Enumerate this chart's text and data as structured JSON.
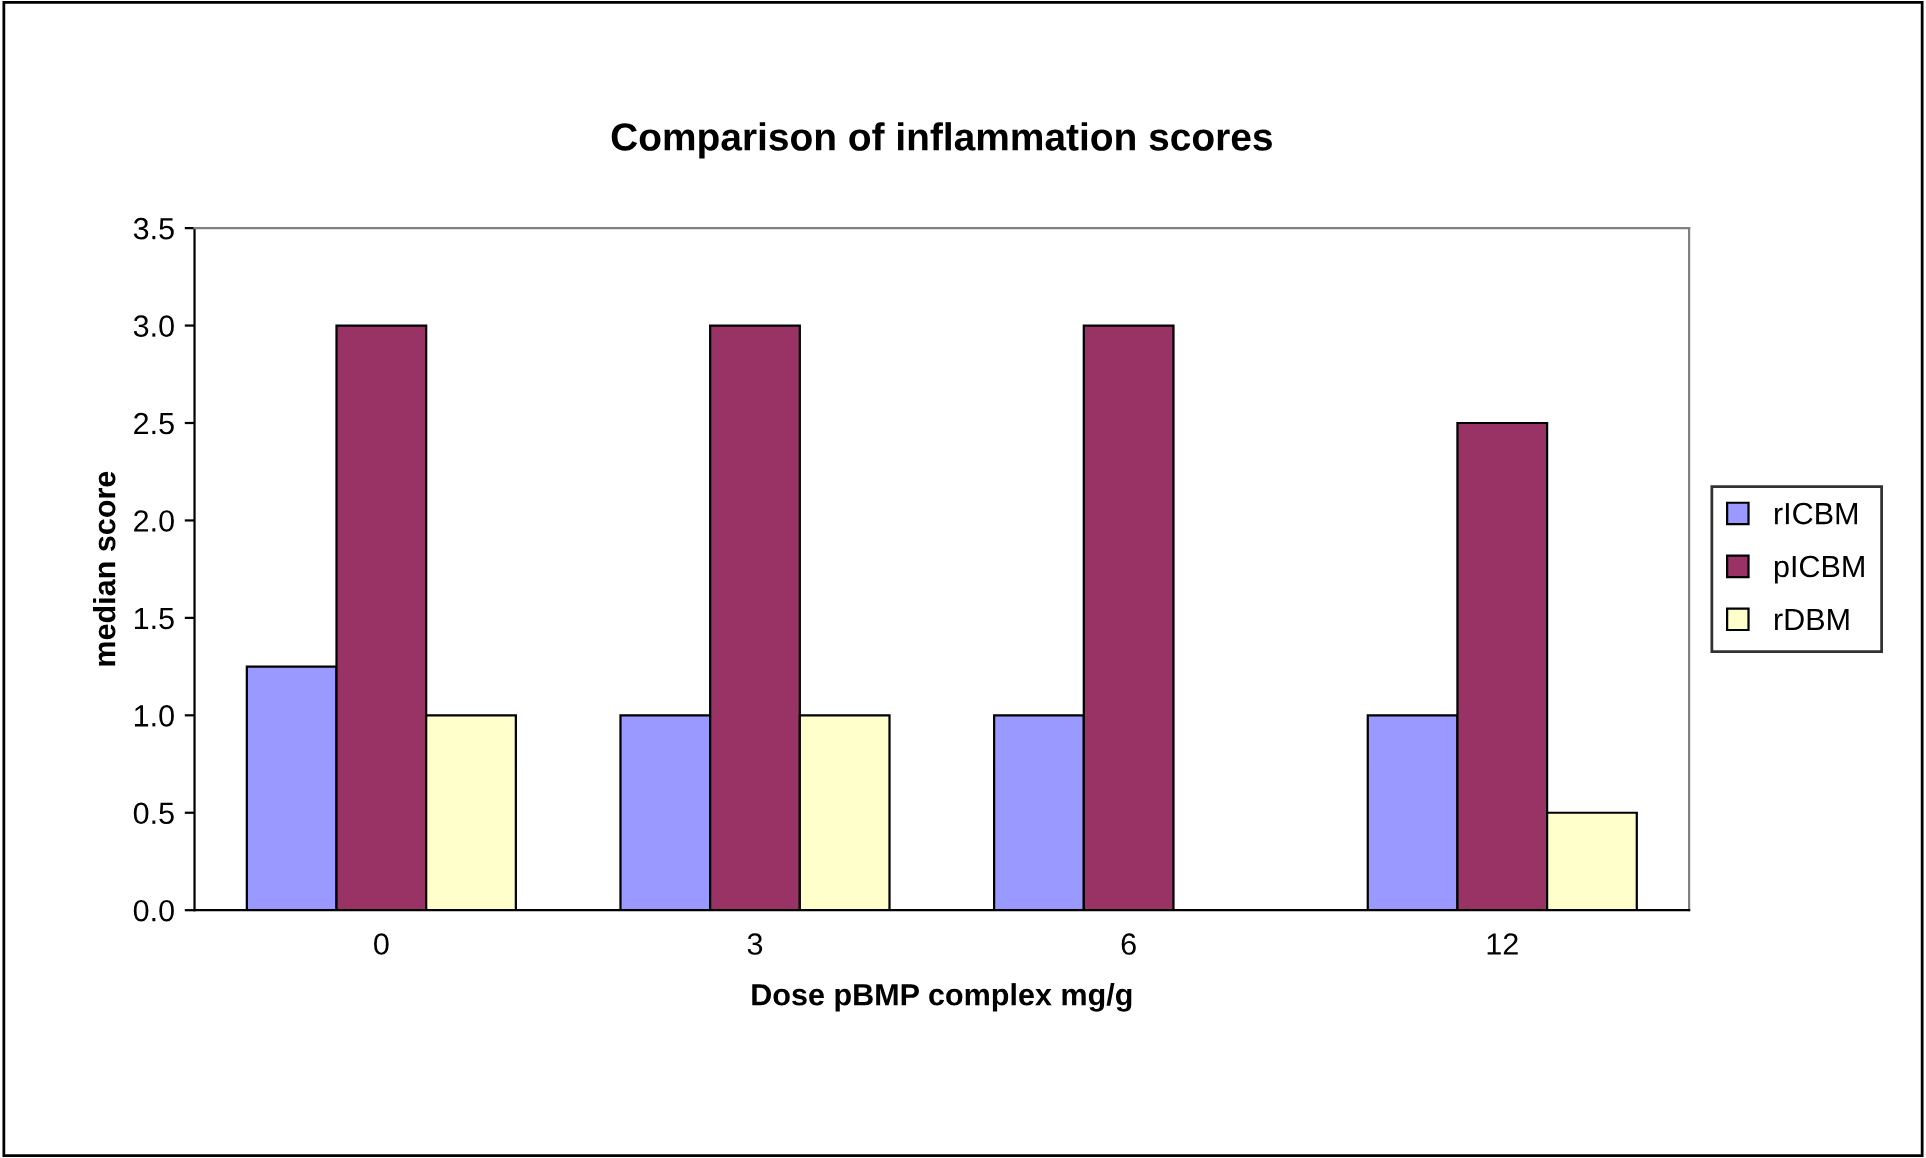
{
  "chart_data": {
    "type": "bar",
    "title": "Comparison of inflammation scores",
    "xlabel": "Dose pBMP complex mg/g",
    "ylabel": "median score",
    "categories": [
      "0",
      "3",
      "6",
      "12"
    ],
    "series": [
      {
        "name": "rICBM",
        "color": "#9999ff",
        "values": [
          1.25,
          1.0,
          1.0,
          1.0
        ]
      },
      {
        "name": "pICBM",
        "color": "#993366",
        "values": [
          3.0,
          3.0,
          3.0,
          2.5
        ]
      },
      {
        "name": "rDBM",
        "color": "#ffffcc",
        "values": [
          1.0,
          1.0,
          null,
          0.5
        ]
      }
    ],
    "ylim": [
      0,
      3.5
    ],
    "yticks": [
      {
        "value": 0,
        "label": "0.0"
      },
      {
        "value": 0.5,
        "label": "0.5"
      },
      {
        "value": 1,
        "label": "1.0"
      },
      {
        "value": 1.5,
        "label": "1.5"
      },
      {
        "value": 2,
        "label": "2.0"
      },
      {
        "value": 2.5,
        "label": "2.5"
      },
      {
        "value": 3,
        "label": "3.0"
      },
      {
        "value": 3.5,
        "label": "3.5"
      }
    ],
    "grid": false,
    "legend": "right"
  }
}
